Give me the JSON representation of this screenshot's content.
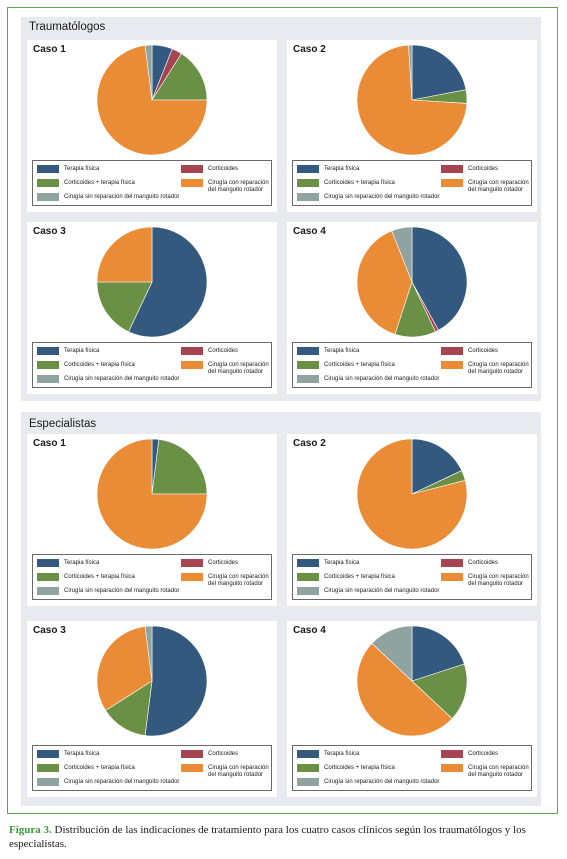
{
  "colors": {
    "terapia": "#335a7e",
    "corticoides": "#a64451",
    "combinada": "#6a9046",
    "cirugia_con": "#ea8b36",
    "cirugia_sin": "#8fa3a0"
  },
  "legend": {
    "terapia": "Terapia física",
    "corticoides": "Corticoides",
    "combinada": "Corticoides + terapia física",
    "cirugia_con": "Cirugía con reparación\ndel manguito rotador",
    "cirugia_sin": "Cirugía sin reparación del manguito rotador"
  },
  "groups": [
    {
      "title": "Traumatólogos"
    },
    {
      "title": "Especialistas"
    }
  ],
  "caption": {
    "label": "Figura 3.",
    "text": " Distribución de las indicaciones de tratamiento para los cuatro casos clínicos según los traumatólogos y los especialistas."
  },
  "chart_data": [
    {
      "type": "pie",
      "group": "Traumatólogos",
      "title": "Caso 1",
      "categories": [
        "Terapia física",
        "Corticoides",
        "Corticoides + terapia física",
        "Cirugía con reparación del manguito rotador",
        "Cirugía sin reparación del manguito rotador"
      ],
      "values": [
        6,
        3,
        16,
        73,
        2
      ]
    },
    {
      "type": "pie",
      "group": "Traumatólogos",
      "title": "Caso 2",
      "categories": [
        "Terapia física",
        "Corticoides",
        "Corticoides + terapia física",
        "Cirugía con reparación del manguito rotador",
        "Cirugía sin reparación del manguito rotador"
      ],
      "values": [
        22,
        0,
        4,
        73,
        1
      ]
    },
    {
      "type": "pie",
      "group": "Traumatólogos",
      "title": "Caso 3",
      "categories": [
        "Terapia física",
        "Corticoides",
        "Corticoides + terapia física",
        "Cirugía con reparación del manguito rotador",
        "Cirugía sin reparación del manguito rotador"
      ],
      "values": [
        57,
        0,
        18,
        25,
        0
      ]
    },
    {
      "type": "pie",
      "group": "Traumatólogos",
      "title": "Caso 4",
      "categories": [
        "Terapia física",
        "Corticoides",
        "Corticoides + terapia física",
        "Cirugía con reparación del manguito rotador",
        "Cirugía sin reparación del manguito rotador"
      ],
      "values": [
        42,
        1,
        12,
        39,
        6
      ]
    },
    {
      "type": "pie",
      "group": "Especialistas",
      "title": "Caso 1",
      "categories": [
        "Terapia física",
        "Corticoides",
        "Corticoides + terapia física",
        "Cirugía con reparación del manguito rotador",
        "Cirugía sin reparación del manguito rotador"
      ],
      "values": [
        2,
        0,
        23,
        75,
        0
      ]
    },
    {
      "type": "pie",
      "group": "Especialistas",
      "title": "Caso 2",
      "categories": [
        "Terapia física",
        "Corticoides",
        "Corticoides + terapia física",
        "Cirugía con reparación del manguito rotador",
        "Cirugía sin reparación del manguito rotador"
      ],
      "values": [
        18,
        0,
        3,
        79,
        0
      ]
    },
    {
      "type": "pie",
      "group": "Especialistas",
      "title": "Caso 3",
      "categories": [
        "Terapia física",
        "Corticoides",
        "Corticoides + terapia física",
        "Cirugía con reparación del manguito rotador",
        "Cirugía sin reparación del manguito rotador"
      ],
      "values": [
        52,
        0,
        14,
        32,
        2
      ]
    },
    {
      "type": "pie",
      "group": "Especialistas",
      "title": "Caso 4",
      "categories": [
        "Terapia física",
        "Corticoides",
        "Corticoides + terapia física",
        "Cirugía con reparación del manguito rotador",
        "Cirugía sin reparación del manguito rotador"
      ],
      "values": [
        20,
        0,
        17,
        50,
        13
      ]
    }
  ]
}
